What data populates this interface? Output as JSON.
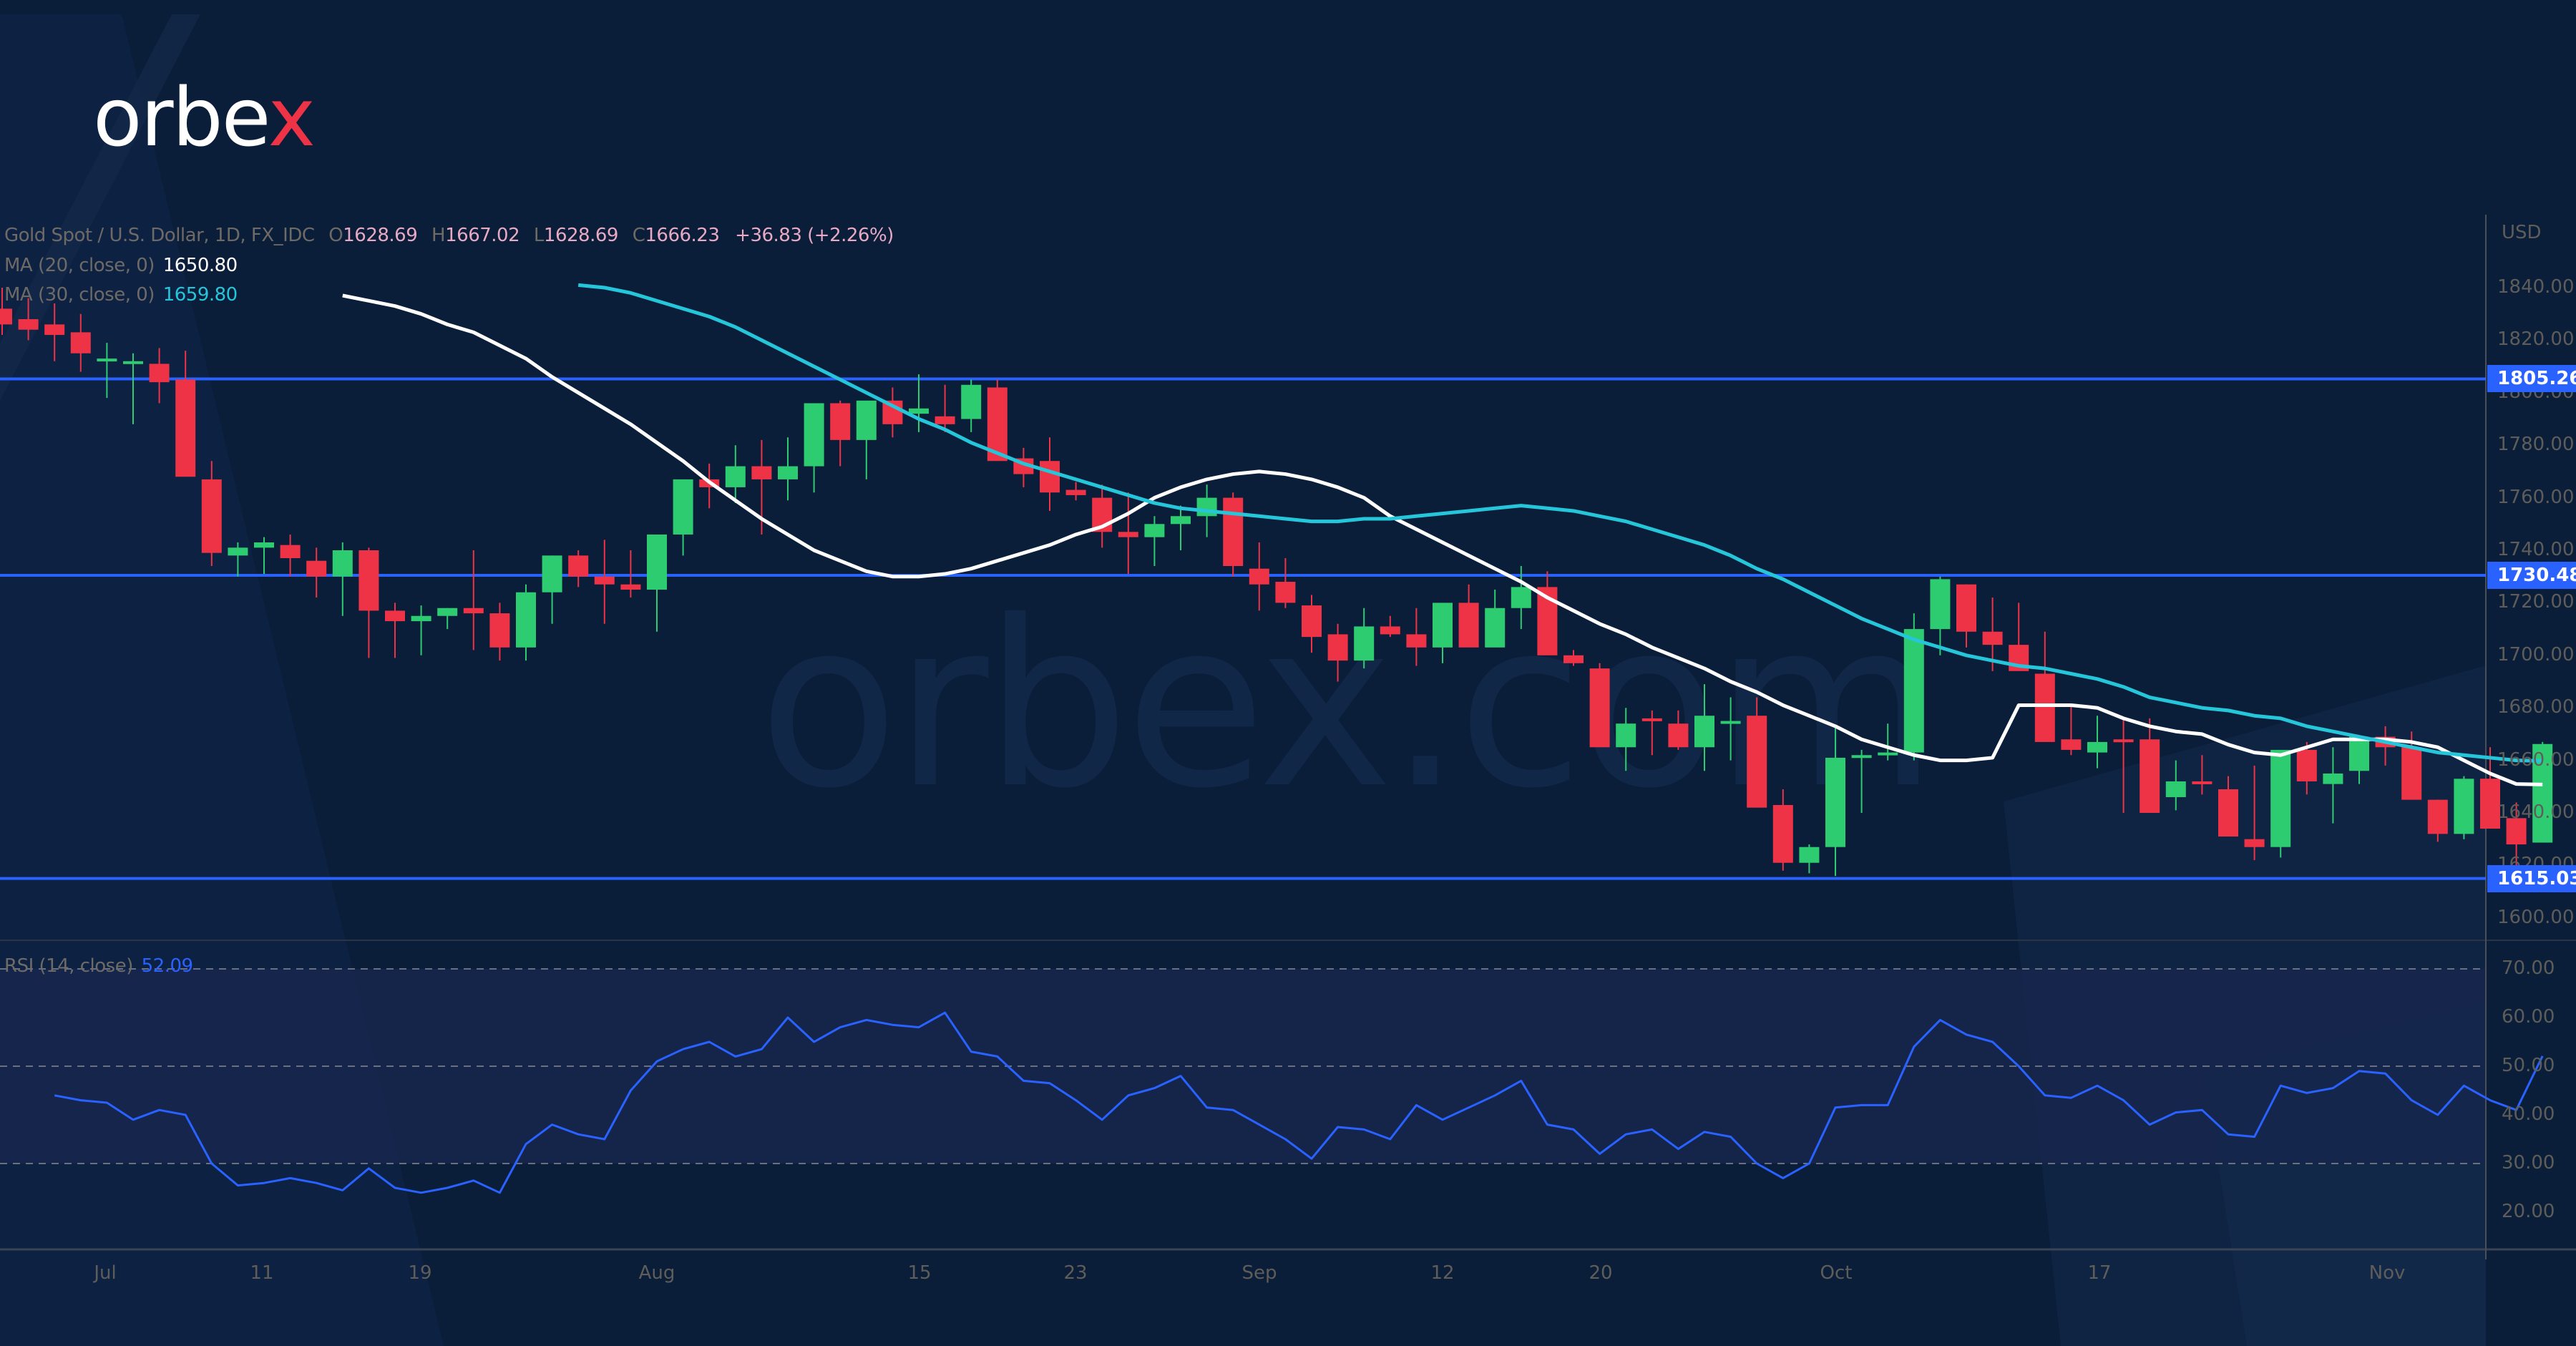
{
  "brand": {
    "logo_text_main": "orbe",
    "logo_text_accent": "x",
    "watermark": "orbex.com"
  },
  "legend": {
    "symbol": "Gold Spot / U.S. Dollar, 1D, FX_IDC",
    "open_label": "O",
    "open": "1628.69",
    "high_label": "H",
    "high": "1667.02",
    "low_label": "L",
    "low": "1628.69",
    "close_label": "C",
    "close": "1666.23",
    "change": "+36.83 (+2.26%)",
    "ma20_label": "MA (20, close, 0)",
    "ma20_value": "1650.80",
    "ma30_label": "MA (30, close, 0)",
    "ma30_value": "1659.80",
    "rsi_label": "RSI (14, close)",
    "rsi_value": "52.09"
  },
  "price_axis": {
    "currency": "USD",
    "ticks": [
      "1840.00",
      "1820.00",
      "1800.00",
      "1780.00",
      "1760.00",
      "1740.00",
      "1720.00",
      "1700.00",
      "1680.00",
      "1660.00",
      "1640.00",
      "1620.00",
      "1600.00"
    ]
  },
  "rsi_axis": {
    "ticks": [
      "70.00",
      "60.00",
      "50.00",
      "40.00",
      "30.00",
      "20.00"
    ]
  },
  "time_axis": {
    "labels": [
      {
        "text": "Jul",
        "x": 147
      },
      {
        "text": "11",
        "x": 366
      },
      {
        "text": "19",
        "x": 587
      },
      {
        "text": "Aug",
        "x": 918
      },
      {
        "text": "15",
        "x": 1285
      },
      {
        "text": "23",
        "x": 1503
      },
      {
        "text": "Sep",
        "x": 1760
      },
      {
        "text": "12",
        "x": 2016
      },
      {
        "text": "20",
        "x": 2237
      },
      {
        "text": "Oct",
        "x": 2566
      },
      {
        "text": "17",
        "x": 2934
      },
      {
        "text": "Nov",
        "x": 3336
      }
    ]
  },
  "levels": [
    {
      "price": 1805.26,
      "label": "1805.26"
    },
    {
      "price": 1730.48,
      "label": "1730.48"
    },
    {
      "price": 1615.03,
      "label": "1615.03"
    }
  ],
  "colors": {
    "background": "#0a1e3a",
    "up": "#2ecc71",
    "down": "#ef3347",
    "ma20": "#ffffff",
    "ma30": "#26c6da",
    "rsi": "#2962ff",
    "level": "#2962ff"
  },
  "chart_data": {
    "type": "candlestick",
    "title": "Gold Spot / U.S. Dollar, 1D, FX_IDC",
    "ylabel": "USD",
    "ylim": [
      1590,
      1850
    ],
    "x_ticks": [
      "Jul",
      "11",
      "19",
      "Aug",
      "15",
      "23",
      "Sep",
      "12",
      "20",
      "Oct",
      "17",
      "Nov"
    ],
    "horizontal_levels": [
      1805.26,
      1730.48,
      1615.03
    ],
    "ohlc": [
      [
        1832,
        1840,
        1822,
        1826
      ],
      [
        1828,
        1836,
        1820,
        1824
      ],
      [
        1826,
        1834,
        1812,
        1822
      ],
      [
        1823,
        1830,
        1808,
        1815
      ],
      [
        1813,
        1819,
        1798,
        1813
      ],
      [
        1811,
        1815,
        1788,
        1812
      ],
      [
        1811,
        1817,
        1796,
        1804
      ],
      [
        1805,
        1816,
        1779,
        1768
      ],
      [
        1767,
        1774,
        1734,
        1739
      ],
      [
        1738,
        1743,
        1730,
        1741
      ],
      [
        1741,
        1745,
        1731,
        1743
      ],
      [
        1742,
        1746,
        1730,
        1737
      ],
      [
        1736,
        1741,
        1722,
        1730
      ],
      [
        1730,
        1743,
        1715,
        1740
      ],
      [
        1740,
        1741,
        1699,
        1717
      ],
      [
        1717,
        1720,
        1699,
        1713
      ],
      [
        1713,
        1719,
        1700,
        1715
      ],
      [
        1715,
        1718,
        1710,
        1718
      ],
      [
        1718,
        1740,
        1702,
        1716
      ],
      [
        1716,
        1720,
        1698,
        1703
      ],
      [
        1703,
        1727,
        1698,
        1724
      ],
      [
        1724,
        1738,
        1712,
        1738
      ],
      [
        1738,
        1740,
        1726,
        1730
      ],
      [
        1730,
        1744,
        1712,
        1727
      ],
      [
        1727,
        1740,
        1722,
        1725
      ],
      [
        1725,
        1740,
        1709,
        1746
      ],
      [
        1746,
        1766,
        1738,
        1767
      ],
      [
        1767,
        1773,
        1756,
        1764
      ],
      [
        1764,
        1780,
        1758,
        1772
      ],
      [
        1772,
        1782,
        1746,
        1767
      ],
      [
        1767,
        1783,
        1759,
        1772
      ],
      [
        1772,
        1795,
        1762,
        1796
      ],
      [
        1796,
        1797,
        1772,
        1782
      ],
      [
        1782,
        1790,
        1767,
        1797
      ],
      [
        1797,
        1802,
        1783,
        1788
      ],
      [
        1792,
        1807,
        1785,
        1794
      ],
      [
        1791,
        1803,
        1785,
        1788
      ],
      [
        1790,
        1805,
        1785,
        1803
      ],
      [
        1802,
        1805,
        1776,
        1774
      ],
      [
        1775,
        1779,
        1764,
        1769
      ],
      [
        1774,
        1783,
        1755,
        1762
      ],
      [
        1763,
        1766,
        1759,
        1761
      ],
      [
        1760,
        1765,
        1741,
        1747
      ],
      [
        1747,
        1762,
        1731,
        1745
      ],
      [
        1745,
        1753,
        1734,
        1750
      ],
      [
        1750,
        1757,
        1740,
        1753
      ],
      [
        1753,
        1765,
        1745,
        1760
      ],
      [
        1760,
        1762,
        1730,
        1734
      ],
      [
        1733,
        1743,
        1717,
        1727
      ],
      [
        1728,
        1737,
        1718,
        1720
      ],
      [
        1719,
        1723,
        1701,
        1707
      ],
      [
        1708,
        1712,
        1690,
        1698
      ],
      [
        1698,
        1718,
        1695,
        1711
      ],
      [
        1711,
        1715,
        1707,
        1708
      ],
      [
        1708,
        1718,
        1696,
        1703
      ],
      [
        1703,
        1720,
        1697,
        1720
      ],
      [
        1720,
        1727,
        1705,
        1703
      ],
      [
        1703,
        1725,
        1707,
        1718
      ],
      [
        1718,
        1734,
        1710,
        1726
      ],
      [
        1726,
        1732,
        1702,
        1700
      ],
      [
        1700,
        1702,
        1696,
        1697
      ],
      [
        1695,
        1697,
        1672,
        1665
      ],
      [
        1665,
        1680,
        1656,
        1674
      ],
      [
        1676,
        1679,
        1662,
        1675
      ],
      [
        1674,
        1679,
        1664,
        1665
      ],
      [
        1665,
        1689,
        1656,
        1677
      ],
      [
        1675,
        1684,
        1660,
        1675
      ],
      [
        1677,
        1684,
        1645,
        1642
      ],
      [
        1643,
        1649,
        1618,
        1621
      ],
      [
        1621,
        1628,
        1617,
        1627
      ],
      [
        1627,
        1673,
        1616,
        1661
      ],
      [
        1661,
        1664,
        1640,
        1662
      ],
      [
        1662,
        1674,
        1660,
        1663
      ],
      [
        1663,
        1716,
        1660,
        1710
      ],
      [
        1710,
        1730,
        1700,
        1729
      ],
      [
        1727,
        1727,
        1703,
        1709
      ],
      [
        1709,
        1722,
        1694,
        1704
      ],
      [
        1704,
        1720,
        1697,
        1694
      ],
      [
        1693,
        1709,
        1668,
        1667
      ],
      [
        1668,
        1681,
        1662,
        1664
      ],
      [
        1663,
        1677,
        1657,
        1667
      ],
      [
        1668,
        1676,
        1640,
        1667
      ],
      [
        1668,
        1676,
        1650,
        1640
      ],
      [
        1646,
        1660,
        1641,
        1652
      ],
      [
        1652,
        1662,
        1647,
        1651
      ],
      [
        1649,
        1654,
        1646,
        1631
      ],
      [
        1630,
        1658,
        1622,
        1627
      ],
      [
        1627,
        1642,
        1623,
        1664
      ],
      [
        1664,
        1667,
        1647,
        1652
      ],
      [
        1651,
        1665,
        1636,
        1655
      ],
      [
        1656,
        1667,
        1651,
        1669
      ],
      [
        1669,
        1673,
        1658,
        1665
      ],
      [
        1665,
        1671,
        1652,
        1645
      ],
      [
        1645,
        1645,
        1629,
        1632
      ],
      [
        1632,
        1654,
        1630,
        1653
      ],
      [
        1653,
        1665,
        1637,
        1634
      ],
      [
        1638,
        1644,
        1616,
        1628
      ],
      [
        1628.69,
        1667.02,
        1628.69,
        1666.23
      ]
    ],
    "series": [
      {
        "name": "MA (20, close, 0)",
        "color": "#ffffff",
        "last": 1650.8,
        "values": [
          1837,
          1835,
          1833,
          1830,
          1826,
          1823,
          1818,
          1813,
          1806,
          1800,
          1794,
          1788,
          1781,
          1774,
          1766,
          1759,
          1752,
          1746,
          1740,
          1736,
          1732,
          1730,
          1730,
          1731,
          1733,
          1736,
          1739,
          1742,
          1746,
          1749,
          1754,
          1760,
          1764,
          1767,
          1769,
          1770,
          1769,
          1767,
          1764,
          1760,
          1753,
          1748,
          1743,
          1738,
          1733,
          1728,
          1722,
          1717,
          1712,
          1708,
          1703,
          1699,
          1695,
          1690,
          1686,
          1681,
          1677,
          1673,
          1668,
          1665,
          1662,
          1660,
          1660,
          1661,
          1681,
          1681,
          1681,
          1680,
          1676,
          1673,
          1671,
          1670,
          1666,
          1663,
          1662,
          1665,
          1668,
          1668,
          1668,
          1667,
          1665,
          1660,
          1655,
          1651,
          1650.8
        ]
      },
      {
        "name": "MA (30, close, 0)",
        "color": "#26c6da",
        "last": 1659.8,
        "values": [
          1841,
          1840,
          1838,
          1835,
          1832,
          1829,
          1825,
          1820,
          1815,
          1810,
          1805,
          1800,
          1795,
          1790,
          1786,
          1781,
          1777,
          1773,
          1770,
          1767,
          1764,
          1761,
          1758,
          1756,
          1755,
          1754,
          1753,
          1752,
          1751,
          1751,
          1752,
          1752,
          1753,
          1754,
          1755,
          1756,
          1757,
          1756,
          1755,
          1753,
          1751,
          1748,
          1745,
          1742,
          1738,
          1733,
          1729,
          1724,
          1719,
          1714,
          1710,
          1706,
          1703,
          1700,
          1698,
          1696,
          1695,
          1693,
          1691,
          1688,
          1684,
          1682,
          1680,
          1679,
          1677,
          1676,
          1673,
          1671,
          1669,
          1667,
          1665,
          1663,
          1662,
          1661,
          1660,
          1659.8
        ]
      }
    ],
    "rsi": {
      "name": "RSI (14, close)",
      "ylim": [
        20,
        75
      ],
      "bands": [
        30,
        50,
        70
      ],
      "last": 52.09,
      "values": [
        44,
        43,
        42.5,
        39,
        41,
        40,
        30,
        25.5,
        26,
        27,
        26,
        24.5,
        29,
        25,
        24,
        25,
        26.5,
        24,
        34,
        38,
        36,
        35,
        45,
        51,
        53.5,
        55,
        52,
        53.5,
        60,
        55,
        58,
        59.5,
        58.5,
        58,
        61,
        53,
        52,
        47,
        46.5,
        43,
        39,
        44,
        45.5,
        48,
        41.5,
        41,
        38,
        35,
        31,
        37.5,
        37,
        35,
        42,
        39,
        41.5,
        44,
        47,
        38,
        37,
        32,
        36,
        37,
        33,
        36.5,
        35.5,
        30,
        27,
        30,
        41.5,
        42,
        42,
        54,
        59.5,
        56.5,
        55,
        50,
        44,
        43.5,
        46,
        43,
        38,
        40.5,
        41,
        36,
        35.5,
        46,
        44.5,
        45.5,
        49,
        48.5,
        43,
        40,
        46,
        43,
        41,
        52.09
      ]
    }
  }
}
